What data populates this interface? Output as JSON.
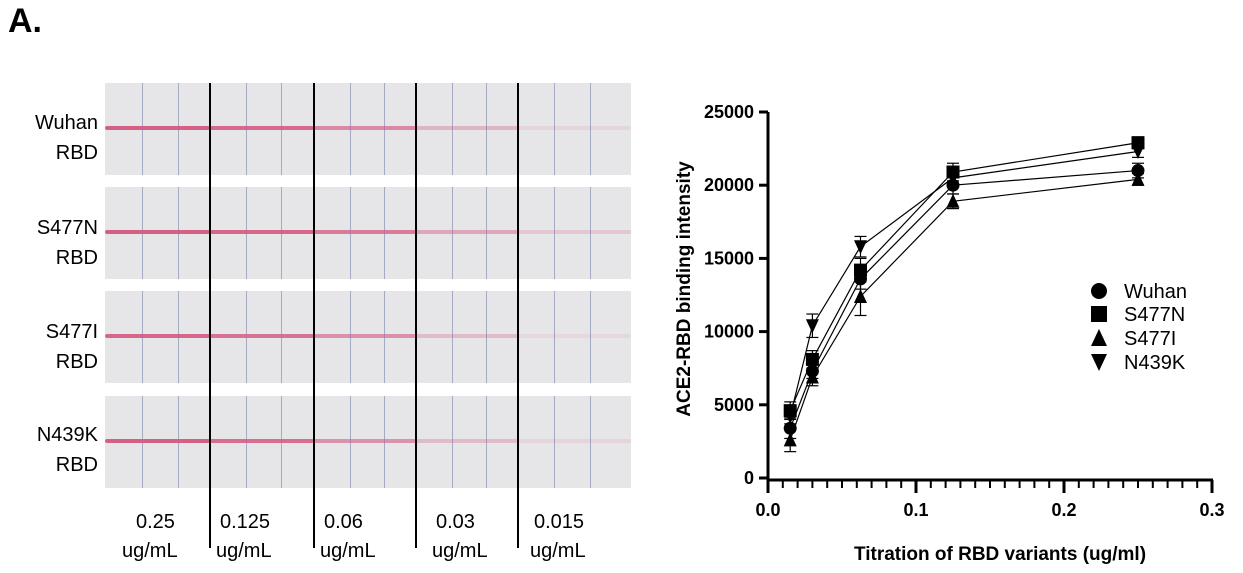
{
  "panel_label": "A.",
  "strips": [
    {
      "line1": "Wuhan",
      "line2": "RBD",
      "band_opacity": [
        0.95,
        0.88,
        0.65,
        0.35,
        0.12
      ]
    },
    {
      "line1": "S477N",
      "line2": "RBD",
      "band_opacity": [
        0.95,
        0.9,
        0.75,
        0.45,
        0.22
      ]
    },
    {
      "line1": "S477I",
      "line2": "RBD",
      "band_opacity": [
        0.9,
        0.82,
        0.6,
        0.3,
        0.1
      ]
    },
    {
      "line1": "N439K",
      "line2": "RBD",
      "band_opacity": [
        0.95,
        0.85,
        0.6,
        0.3,
        0.12
      ]
    }
  ],
  "concentrations": [
    {
      "value": "0.25",
      "unit": "ug/mL"
    },
    {
      "value": "0.125",
      "unit": "ug/mL"
    },
    {
      "value": "0.06",
      "unit": "ug/mL"
    },
    {
      "value": "0.03",
      "unit": "ug/mL"
    },
    {
      "value": "0.015",
      "unit": "ug/mL"
    }
  ],
  "colors": {
    "band": "#d4587f",
    "strip": "#e6e6e9",
    "ink": "#000000"
  },
  "chart_data": {
    "type": "line",
    "xlabel": "Titration of RBD variants (ug/ml)",
    "ylabel": "ACE2-RBD binding intensity",
    "xlim": [
      0,
      0.3
    ],
    "ylim": [
      0,
      25000
    ],
    "xticks": [
      0.0,
      0.1,
      0.2,
      0.3
    ],
    "xtick_labels": [
      "0.0",
      "0.1",
      "0.2",
      "0.3"
    ],
    "yticks": [
      0,
      5000,
      10000,
      15000,
      20000,
      25000
    ],
    "ytick_labels": [
      "0",
      "5000",
      "10000",
      "15000",
      "20000",
      "25000"
    ],
    "x": [
      0.015,
      0.03,
      0.0625,
      0.125,
      0.25
    ],
    "series": [
      {
        "name": "Wuhan",
        "marker": "circle",
        "values": [
          3400,
          7300,
          13600,
          20000,
          21000
        ],
        "errors": [
          700,
          500,
          700,
          600,
          500
        ]
      },
      {
        "name": "S477N",
        "marker": "square",
        "values": [
          4600,
          8100,
          14200,
          20900,
          22900
        ],
        "errors": [
          600,
          600,
          800,
          600,
          400
        ]
      },
      {
        "name": "S477I",
        "marker": "triangle-up",
        "values": [
          2600,
          6900,
          12400,
          18900,
          20400
        ],
        "errors": [
          800,
          600,
          1300,
          500,
          400
        ]
      },
      {
        "name": "N439K",
        "marker": "triangle-down",
        "values": [
          4200,
          10400,
          15800,
          20500,
          22300
        ],
        "errors": [
          500,
          800,
          700,
          500,
          400
        ]
      }
    ],
    "legend_position": "right"
  }
}
